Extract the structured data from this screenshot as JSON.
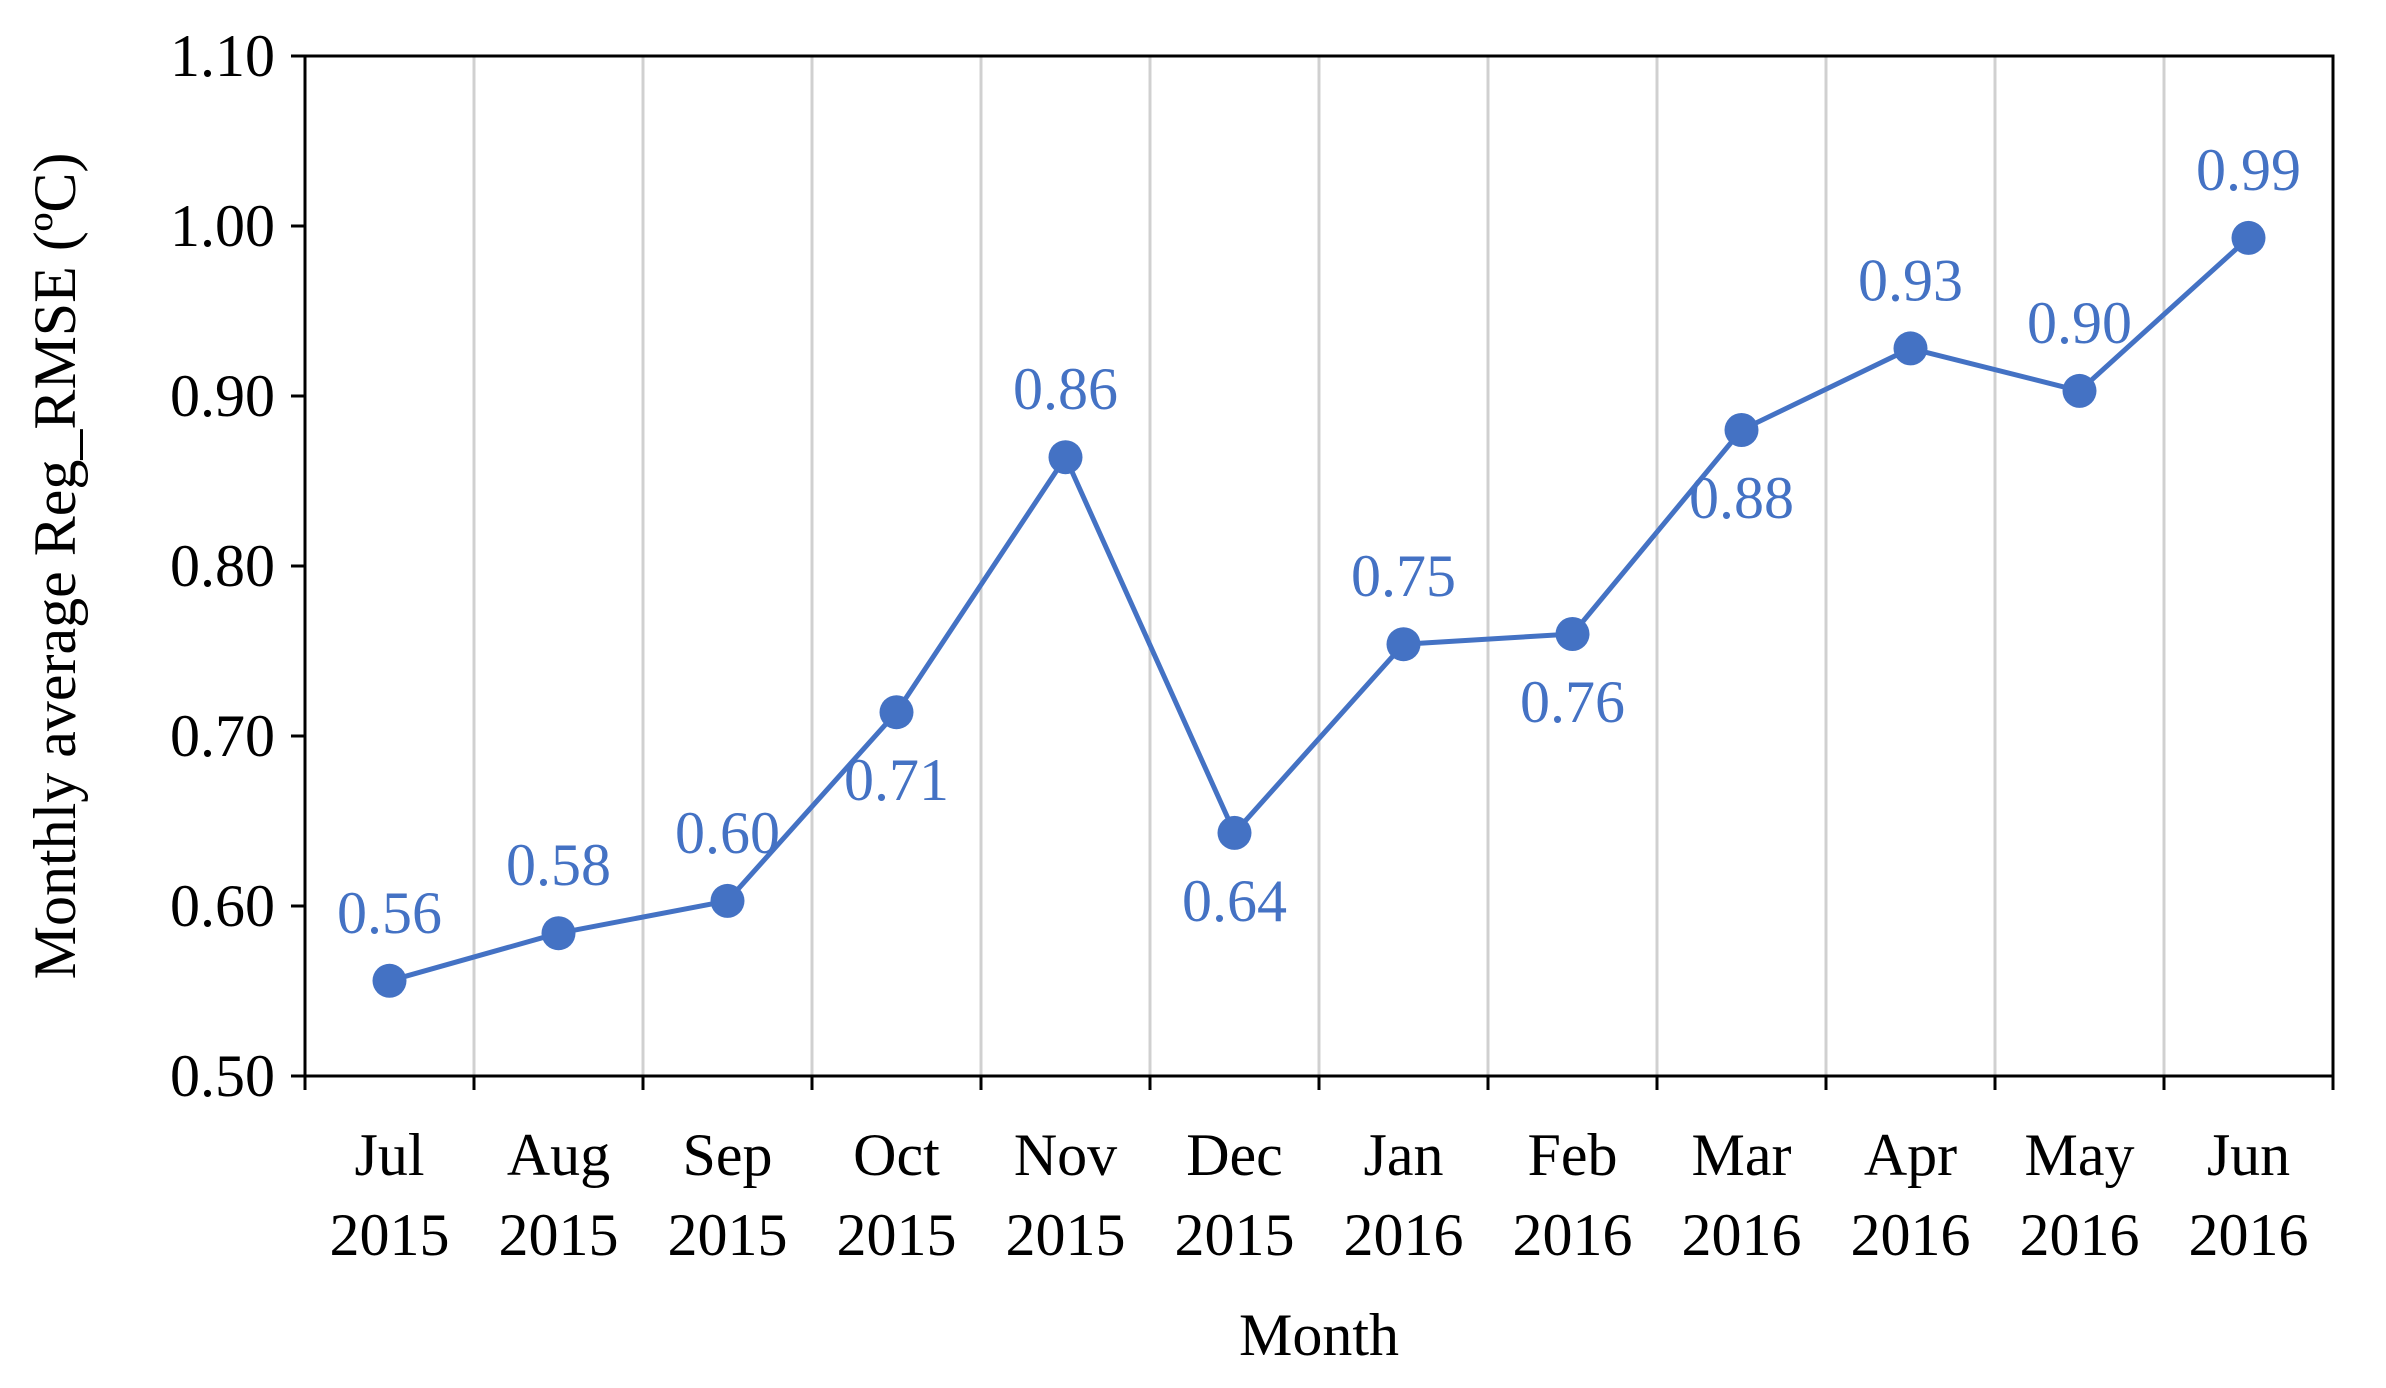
{
  "chart_data": {
    "type": "line",
    "title": "",
    "xlabel": "Month",
    "ylabel": "Monthly average Reg_RMSE (ºC)",
    "categories": [
      [
        "Jul",
        "2015"
      ],
      [
        "Aug",
        "2015"
      ],
      [
        "Sep",
        "2015"
      ],
      [
        "Oct",
        "2015"
      ],
      [
        "Nov",
        "2015"
      ],
      [
        "Dec",
        "2015"
      ],
      [
        "Jan",
        "2016"
      ],
      [
        "Feb",
        "2016"
      ],
      [
        "Mar",
        "2016"
      ],
      [
        "Apr",
        "2016"
      ],
      [
        "May",
        "2016"
      ],
      [
        "Jun",
        "2016"
      ]
    ],
    "series": [
      {
        "values": [
          0.556,
          0.584,
          0.603,
          0.714,
          0.864,
          0.643,
          0.754,
          0.76,
          0.88,
          0.928,
          0.903,
          0.993
        ],
        "labels": [
          "0.56",
          "0.58",
          "0.60",
          "0.71",
          "0.86",
          "0.64",
          "0.75",
          "0.76",
          "0.88",
          "0.93",
          "0.90",
          "0.99"
        ],
        "label_positions": [
          "above",
          "above",
          "above",
          "below",
          "above",
          "below",
          "above",
          "below",
          "below",
          "above",
          "above",
          "above"
        ]
      }
    ],
    "ylim": [
      0.5,
      1.1
    ],
    "yticks": [
      "0.50",
      "0.60",
      "0.70",
      "0.80",
      "0.90",
      "1.00",
      "1.10"
    ],
    "grid": "vertical",
    "legend": "none",
    "colors": {
      "series": "#4472C4",
      "label": "#4472C4",
      "axis": "#000000",
      "grid": "#D0D0D0"
    }
  }
}
